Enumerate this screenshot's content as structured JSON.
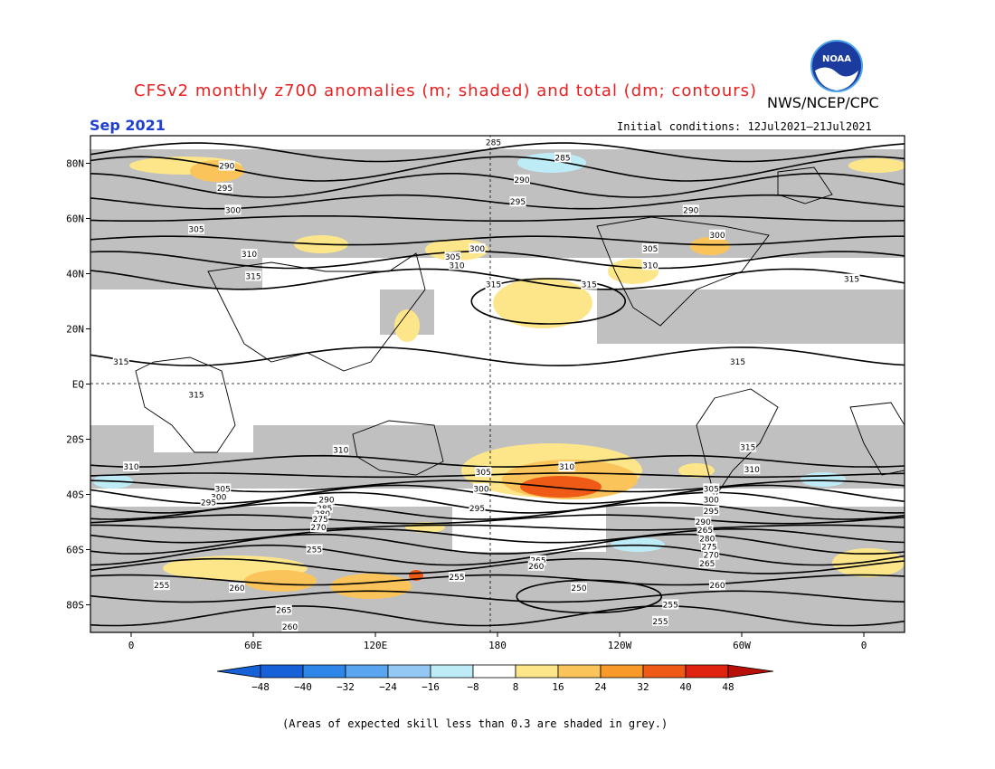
{
  "title": "CFSv2 monthly z700 anomalies (m; shaded) and total (dm; contours)",
  "organization": "NWS/NCEP/CPC",
  "logo_text": "NOAA",
  "valid_month": "Sep 2021",
  "initial_conditions": "Initial conditions: 12Jul2021–21Jul2021",
  "footnote": "(Areas of expected skill less than 0.3 are shaded in grey.)",
  "colors": {
    "title": "#e8201f",
    "month": "#1f3fd0",
    "skill_mask": "#c0c0c0",
    "positive": [
      "#fde68a",
      "#fbc45a",
      "#f79a2a",
      "#ef5a17",
      "#e02210",
      "#b80f0a"
    ],
    "negative": [
      "#1660d8",
      "#2d86e8",
      "#5aa5ef",
      "#93c8f5",
      "#bdecf7"
    ]
  },
  "map": {
    "lat_labels": [
      "80N",
      "60N",
      "40N",
      "20N",
      "EQ",
      "20S",
      "40S",
      "60S",
      "80S"
    ],
    "lon_labels": [
      "0",
      "60E",
      "120E",
      "180",
      "120W",
      "60W",
      "0"
    ]
  },
  "colorbar": {
    "labels": [
      "−48",
      "−40",
      "−32",
      "−24",
      "−16",
      "−8",
      "8",
      "16",
      "24",
      "32",
      "40",
      "48"
    ]
  },
  "contours": [
    {
      "label": "285",
      "lat": 87.5,
      "lon": 178
    },
    {
      "label": "285",
      "lat": 82,
      "lon": 212
    },
    {
      "label": "290",
      "lat": 79,
      "lon": 47
    },
    {
      "label": "290",
      "lat": 74,
      "lon": 192
    },
    {
      "label": "290",
      "lat": 63,
      "lon": 275
    },
    {
      "label": "295",
      "lat": 71,
      "lon": 46
    },
    {
      "label": "295",
      "lat": 66,
      "lon": 190
    },
    {
      "label": "300",
      "lat": 63,
      "lon": 50
    },
    {
      "label": "300",
      "lat": 49,
      "lon": 170
    },
    {
      "label": "300",
      "lat": 54,
      "lon": 288
    },
    {
      "label": "305",
      "lat": 56,
      "lon": 32
    },
    {
      "label": "305",
      "lat": 46,
      "lon": 158
    },
    {
      "label": "305",
      "lat": 49,
      "lon": 255
    },
    {
      "label": "310",
      "lat": 47,
      "lon": 58
    },
    {
      "label": "310",
      "lat": 43,
      "lon": 160
    },
    {
      "label": "310",
      "lat": 43,
      "lon": 255
    },
    {
      "label": "315",
      "lat": 39,
      "lon": 60
    },
    {
      "label": "315",
      "lat": 36,
      "lon": 178
    },
    {
      "label": "315",
      "lat": 36,
      "lon": 225
    },
    {
      "label": "315",
      "lat": 38,
      "lon": 354
    },
    {
      "label": "315",
      "lat": 8,
      "lon": -5
    },
    {
      "label": "315",
      "lat": 8,
      "lon": 298
    },
    {
      "label": "315",
      "lat": -4,
      "lon": 32
    },
    {
      "label": "315",
      "lat": -23,
      "lon": 303
    },
    {
      "label": "310",
      "lat": -24,
      "lon": 103
    },
    {
      "label": "310",
      "lat": -30,
      "lon": 0
    },
    {
      "label": "310",
      "lat": -30,
      "lon": 214
    },
    {
      "label": "310",
      "lat": -31,
      "lon": 305
    },
    {
      "label": "305",
      "lat": -32,
      "lon": 173
    },
    {
      "label": "305",
      "lat": -38,
      "lon": 45
    },
    {
      "label": "305",
      "lat": -38,
      "lon": 285
    },
    {
      "label": "300",
      "lat": -38,
      "lon": 172
    },
    {
      "label": "300",
      "lat": -41,
      "lon": 43
    },
    {
      "label": "300",
      "lat": -42,
      "lon": 285
    },
    {
      "label": "295",
      "lat": -43,
      "lon": 38
    },
    {
      "label": "295",
      "lat": -45,
      "lon": 170
    },
    {
      "label": "295",
      "lat": -46,
      "lon": 285
    },
    {
      "label": "290",
      "lat": -42,
      "lon": 96
    },
    {
      "label": "290",
      "lat": -50,
      "lon": 281
    },
    {
      "label": "285",
      "lat": -45,
      "lon": 95
    },
    {
      "label": "280",
      "lat": -47,
      "lon": 94
    },
    {
      "label": "275",
      "lat": -49,
      "lon": 93
    },
    {
      "label": "270",
      "lat": -52,
      "lon": 92
    },
    {
      "label": "265",
      "lat": -53,
      "lon": 282
    },
    {
      "label": "280",
      "lat": -56,
      "lon": 283
    },
    {
      "label": "275",
      "lat": -59,
      "lon": 284
    },
    {
      "label": "270",
      "lat": -62,
      "lon": 285
    },
    {
      "label": "265",
      "lat": -65,
      "lon": 283
    },
    {
      "label": "265",
      "lat": -64,
      "lon": 200
    },
    {
      "label": "260",
      "lat": -66,
      "lon": 199
    },
    {
      "label": "255",
      "lat": -60,
      "lon": 90
    },
    {
      "label": "255",
      "lat": -70,
      "lon": 160
    },
    {
      "label": "255",
      "lat": -73,
      "lon": 15
    },
    {
      "label": "260",
      "lat": -74,
      "lon": 52
    },
    {
      "label": "260",
      "lat": -73,
      "lon": 288
    },
    {
      "label": "250",
      "lat": -74,
      "lon": 220
    },
    {
      "label": "255",
      "lat": -80,
      "lon": 265
    },
    {
      "label": "255",
      "lat": -86,
      "lon": 260
    },
    {
      "label": "265",
      "lat": -82,
      "lon": 75
    },
    {
      "label": "260",
      "lat": -88,
      "lon": 78
    }
  ]
}
